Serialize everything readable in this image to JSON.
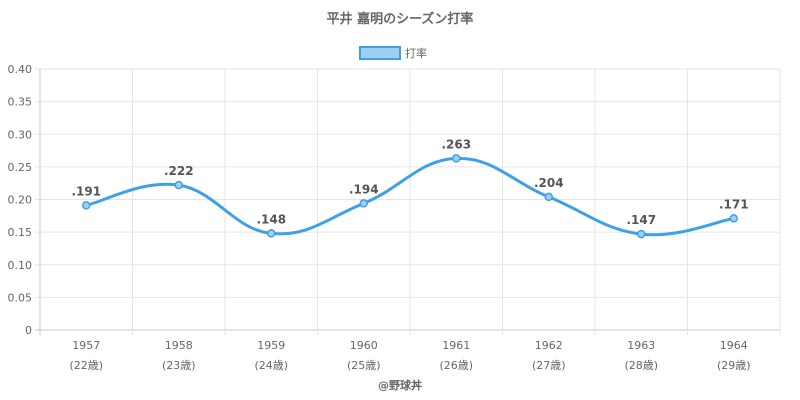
{
  "chart_data": {
    "type": "line",
    "title": "平井 嘉明のシーズン打率",
    "legend": {
      "position": "top",
      "label": "打率"
    },
    "series": [
      {
        "name": "打率",
        "values": [
          0.191,
          0.222,
          0.148,
          0.194,
          0.263,
          0.204,
          0.147,
          0.171
        ]
      }
    ],
    "categories": [
      "1957",
      "1958",
      "1959",
      "1960",
      "1961",
      "1962",
      "1963",
      "1964"
    ],
    "category_sublabels": [
      "(22歳)",
      "(23歳)",
      "(24歳)",
      "(25歳)",
      "(26歳)",
      "(27歳)",
      "(28歳)",
      "(29歳)"
    ],
    "data_labels": [
      ".191",
      ".222",
      ".148",
      ".194",
      ".263",
      ".204",
      ".147",
      ".171"
    ],
    "y_ticks": [
      "0",
      "0.05",
      "0.10",
      "0.15",
      "0.20",
      "0.25",
      "0.30",
      "0.35",
      "0.40"
    ],
    "ylim": [
      0,
      0.4
    ],
    "grid": true,
    "colors": {
      "line": "#3fa0e4",
      "fill": "#9fcff2",
      "grid": "#e5e5e5",
      "text": "#666666"
    }
  },
  "credit": "@野球丼"
}
